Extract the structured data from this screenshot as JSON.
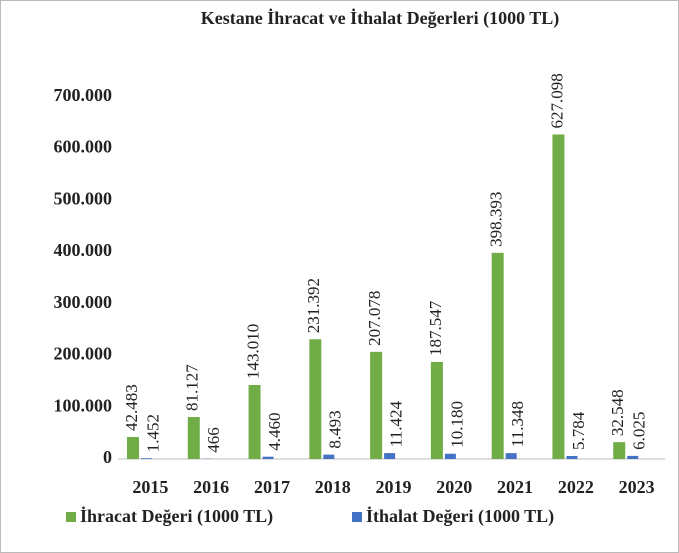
{
  "chart_data": {
    "type": "bar",
    "title": "Kestane İhracat ve İthalat Değerleri (1000 TL)",
    "categories": [
      "2015",
      "2016",
      "2017",
      "2018",
      "2019",
      "2020",
      "2021",
      "2022",
      "2023"
    ],
    "series": [
      {
        "name": "İhracat Değeri (1000 TL)",
        "color": "#70ad47",
        "values": [
          42483,
          81127,
          143010,
          231392,
          207078,
          187547,
          398393,
          627098,
          32548
        ],
        "value_labels": [
          "42.483",
          "81.127",
          "143.010",
          "231.392",
          "207.078",
          "187.547",
          "398.393",
          "627.098",
          "32.548"
        ]
      },
      {
        "name": "İthalat Değeri (1000 TL)",
        "color": "#4472c4",
        "values": [
          1452,
          466,
          4460,
          8493,
          11424,
          10180,
          11348,
          5784,
          6025
        ],
        "value_labels": [
          "1.452",
          "466",
          "4.460",
          "8.493",
          "11.424",
          "10.180",
          "11.348",
          "5.784",
          "6.025"
        ]
      }
    ],
    "ylim": [
      0,
      800000
    ],
    "yticks": [
      0,
      {
        "value": 100000,
        "label": "100.000"
      },
      {
        "value": 200000,
        "label": "200.000"
      },
      {
        "value": 300000,
        "label": "300.000"
      },
      {
        "value": 400000,
        "label": "400.000"
      },
      {
        "value": 500000,
        "label": "500.000"
      },
      {
        "value": 600000,
        "label": "600.000"
      },
      {
        "value": 700000,
        "label": "700.000"
      }
    ],
    "grid": false,
    "legend": "bottom"
  }
}
